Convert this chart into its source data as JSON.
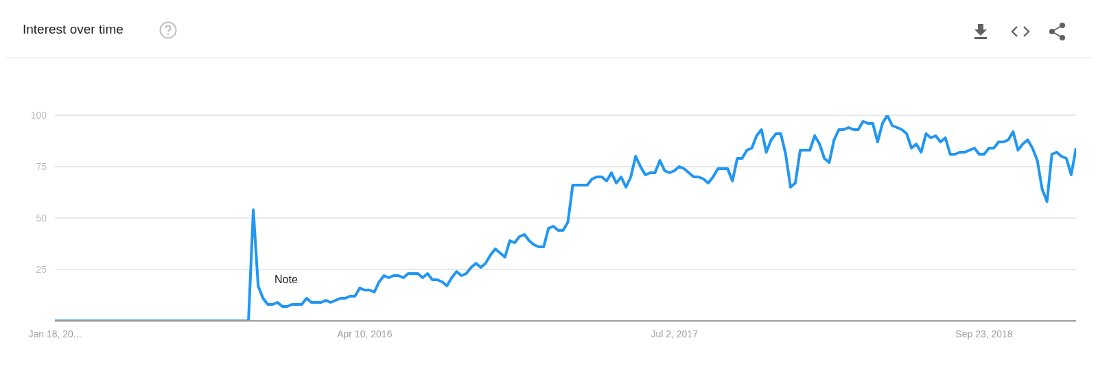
{
  "chart_data": {
    "type": "line",
    "title": "Interest over time",
    "x": [
      "2015-01-18",
      "2015-10-25",
      "2015-11-01",
      "2015-11-08",
      "2015-11-15",
      "2015-11-22",
      "2015-11-29",
      "2015-12-06",
      "2015-12-13",
      "2015-12-20",
      "2015-12-27",
      "2016-01-03",
      "2016-01-10",
      "2016-01-17",
      "2016-01-24",
      "2016-01-31",
      "2016-02-07",
      "2016-02-14",
      "2016-02-21",
      "2016-02-28",
      "2016-03-06",
      "2016-03-13",
      "2016-03-20",
      "2016-03-27",
      "2016-04-03",
      "2016-04-10",
      "2016-04-17",
      "2016-04-24",
      "2016-05-01",
      "2016-05-08",
      "2016-05-15",
      "2016-05-22",
      "2016-05-29",
      "2016-06-05",
      "2016-06-12",
      "2016-06-19",
      "2016-06-26",
      "2016-07-03",
      "2016-07-10",
      "2016-07-17",
      "2016-07-24",
      "2016-07-31",
      "2016-08-07",
      "2016-08-14",
      "2016-08-21",
      "2016-08-28",
      "2016-09-04",
      "2016-09-11",
      "2016-09-18",
      "2016-09-25",
      "2016-10-02",
      "2016-10-09",
      "2016-10-16",
      "2016-10-23",
      "2016-10-30",
      "2016-11-06",
      "2016-11-13",
      "2016-11-20",
      "2016-11-27",
      "2016-12-04",
      "2016-12-11",
      "2016-12-18",
      "2016-12-25",
      "2017-01-01",
      "2017-01-08",
      "2017-01-15",
      "2017-01-22",
      "2017-01-29",
      "2017-02-05",
      "2017-02-12",
      "2017-02-19",
      "2017-02-26",
      "2017-03-05",
      "2017-03-12",
      "2017-03-19",
      "2017-03-26",
      "2017-04-02",
      "2017-04-09",
      "2017-04-16",
      "2017-04-23",
      "2017-04-30",
      "2017-05-07",
      "2017-05-14",
      "2017-05-21",
      "2017-05-28",
      "2017-06-04",
      "2017-06-11",
      "2017-06-18",
      "2017-06-25",
      "2017-07-02",
      "2017-07-09",
      "2017-07-16",
      "2017-07-23",
      "2017-07-30",
      "2017-08-06",
      "2017-08-13",
      "2017-08-20",
      "2017-08-27",
      "2017-09-03",
      "2017-09-10",
      "2017-09-17",
      "2017-09-24",
      "2017-10-01",
      "2017-10-08",
      "2017-10-15",
      "2017-10-22",
      "2017-10-29",
      "2017-11-05",
      "2017-11-12",
      "2017-11-19",
      "2017-11-26",
      "2017-12-03",
      "2017-12-10",
      "2017-12-17",
      "2017-12-24",
      "2017-12-31",
      "2018-01-07",
      "2018-01-14",
      "2018-01-21",
      "2018-01-28",
      "2018-02-04",
      "2018-02-11",
      "2018-02-18",
      "2018-02-25",
      "2018-03-04",
      "2018-03-11",
      "2018-03-18",
      "2018-03-25",
      "2018-04-01",
      "2018-04-08",
      "2018-04-15",
      "2018-04-22",
      "2018-04-29",
      "2018-05-06",
      "2018-05-13",
      "2018-05-20",
      "2018-05-27",
      "2018-06-03",
      "2018-06-10",
      "2018-06-17",
      "2018-06-24",
      "2018-07-01",
      "2018-07-08",
      "2018-07-15",
      "2018-07-22",
      "2018-07-29",
      "2018-08-05",
      "2018-08-12",
      "2018-08-19",
      "2018-08-26",
      "2018-09-02",
      "2018-09-09",
      "2018-09-16",
      "2018-09-23",
      "2018-09-30",
      "2018-10-07",
      "2018-10-14",
      "2018-10-21",
      "2018-10-28",
      "2018-11-04",
      "2018-11-11",
      "2018-11-18",
      "2018-11-25",
      "2018-12-02",
      "2018-12-09",
      "2018-12-16",
      "2018-12-23",
      "2018-12-30",
      "2019-01-06",
      "2019-01-13",
      "2019-01-20",
      "2019-01-27",
      "2019-02-03"
    ],
    "series": [
      {
        "color": "#2196f3",
        "values": [
          0,
          0,
          54,
          17,
          11,
          8,
          8,
          9,
          7,
          7,
          8,
          8,
          8,
          11,
          9,
          9,
          9,
          10,
          9,
          10,
          11,
          11,
          12,
          12,
          16,
          15,
          15,
          14,
          19,
          22,
          21,
          22,
          22,
          21,
          23,
          23,
          23,
          21,
          23,
          20,
          20,
          19,
          17,
          21,
          24,
          22,
          23,
          26,
          28,
          26,
          28,
          32,
          35,
          33,
          31,
          39,
          38,
          41,
          42,
          39,
          37,
          36,
          36,
          45,
          46,
          44,
          44,
          48,
          66,
          66,
          66,
          66,
          69,
          70,
          70,
          68,
          72,
          67,
          70,
          65,
          70,
          80,
          75,
          71,
          72,
          72,
          78,
          73,
          72,
          73,
          75,
          74,
          72,
          70,
          70,
          69,
          67,
          70,
          74,
          74,
          74,
          68,
          79,
          79,
          83,
          84,
          90,
          93,
          82,
          88,
          91,
          91,
          81,
          65,
          67,
          83,
          83,
          83,
          90,
          86,
          79,
          77,
          88,
          93,
          93,
          94,
          93,
          93,
          97,
          96,
          96,
          87,
          96,
          100,
          95,
          94,
          93,
          91,
          84,
          86,
          82,
          91,
          89,
          90,
          87,
          89,
          81,
          81,
          82,
          82,
          83,
          84,
          81,
          81,
          84,
          84,
          87,
          87,
          88,
          92,
          83,
          86,
          88,
          84,
          78,
          64,
          58,
          81,
          82,
          80,
          79,
          71,
          84
        ]
      }
    ],
    "xlim": [
      "2015-01-18",
      "2019-02-03"
    ],
    "xticks": [
      {
        "value": "2015-01-18",
        "label": "Jan 18, 20..."
      },
      {
        "value": "2016-04-10",
        "label": "Apr 10, 2016"
      },
      {
        "value": "2017-07-02",
        "label": "Jul 2, 2017"
      },
      {
        "value": "2018-09-23",
        "label": "Sep 23, 2018"
      }
    ],
    "ylim": [
      0,
      100
    ],
    "yticks": [
      25,
      50,
      75,
      100
    ],
    "grid": "y",
    "marker": "none",
    "line_style": "solid",
    "annotations": [
      "Note"
    ]
  }
}
